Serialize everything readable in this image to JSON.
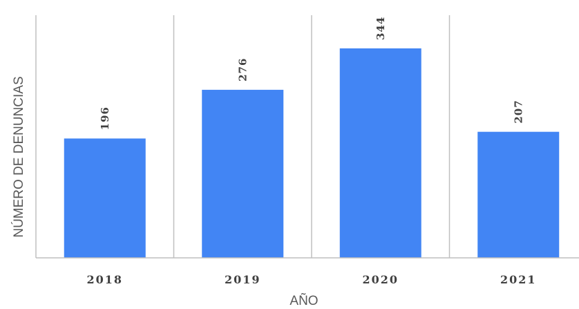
{
  "chart_data": {
    "type": "bar",
    "title": "",
    "xlabel": "AÑO",
    "ylabel": "NÚMERO DE DENUNCIAS",
    "categories": [
      "2018",
      "2019",
      "2020",
      "2021"
    ],
    "values": [
      196,
      276,
      344,
      207
    ],
    "data_labels": [
      "196",
      "276",
      "344",
      "207"
    ],
    "ylim": [
      0,
      400
    ],
    "grid": "vertical separators between categories",
    "legend": "none",
    "bar_color": "#4285f4",
    "axis_color": "#bfbfbf"
  }
}
